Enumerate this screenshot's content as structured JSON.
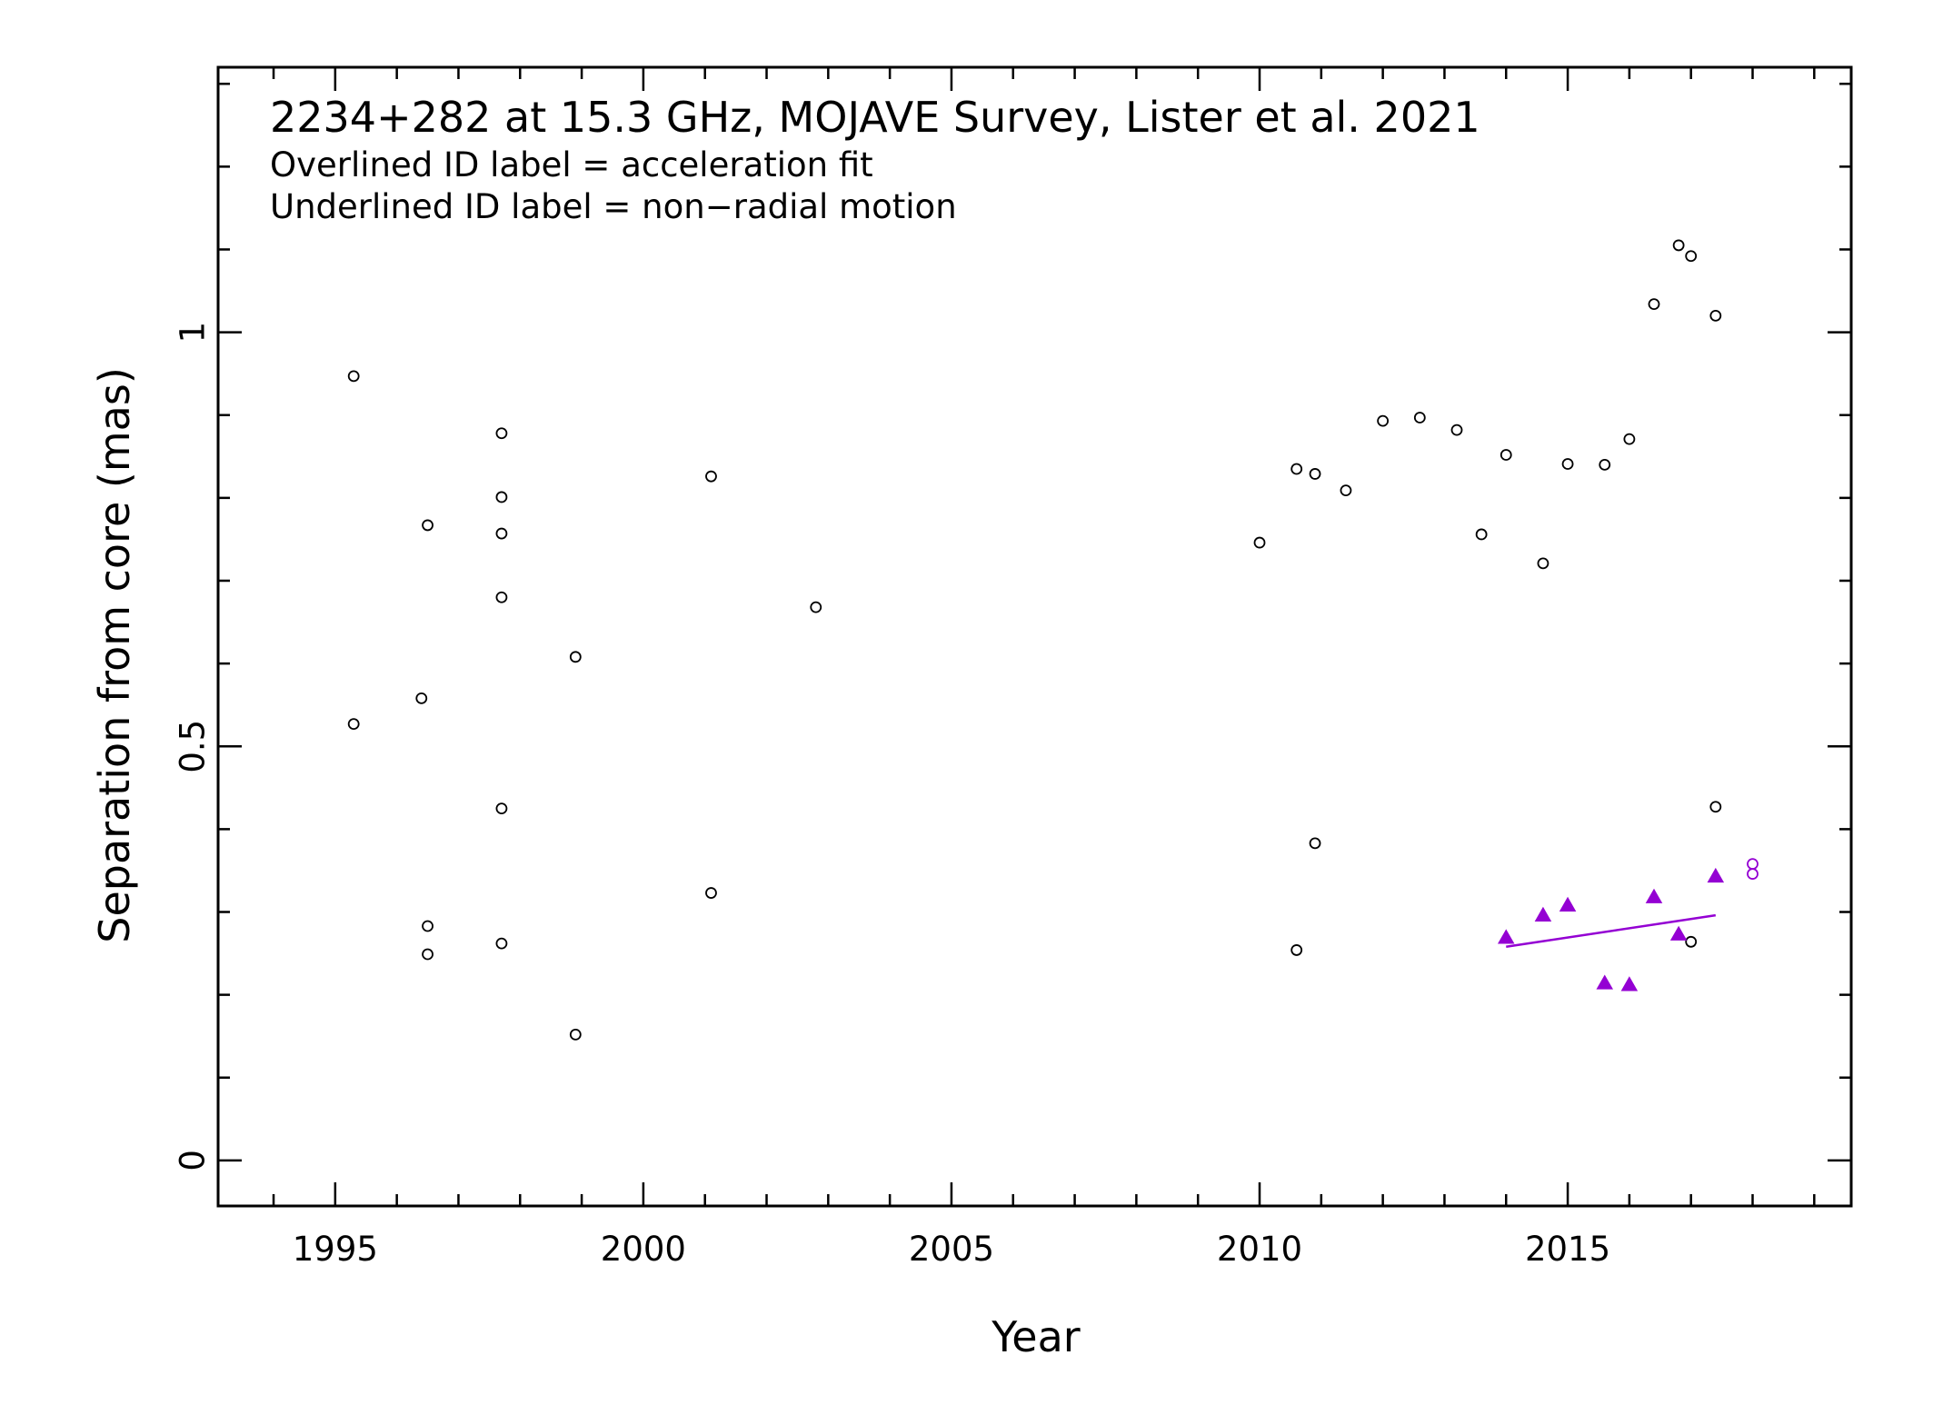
{
  "chart_data": {
    "type": "scatter",
    "title": "2234+282 at 15.3 GHz, MOJAVE Survey, Lister et al. 2021",
    "notes": [
      "Overlined ID label = acceleration fit",
      "Underlined ID label = non−radial motion"
    ],
    "xlabel": "Year",
    "ylabel": "Separation from core (mas)",
    "xlim": [
      1993.1,
      2019.6
    ],
    "ylim": [
      -0.055,
      1.32
    ],
    "x_ticks": [
      1995,
      2000,
      2005,
      2010,
      2015
    ],
    "x_tick_labels": [
      "1995",
      "2000",
      "2005",
      "2010",
      "2015"
    ],
    "y_ticks": [
      0,
      0.5,
      1
    ],
    "y_tick_labels": [
      "0",
      "0.5",
      "1"
    ],
    "grid": false,
    "colors": {
      "other": "#000000",
      "component": "#9400d3"
    },
    "series": [
      {
        "marker": "open-circle",
        "color": "#000000",
        "points": [
          [
            1995.3,
            0.947
          ],
          [
            1995.3,
            0.527
          ],
          [
            1996.4,
            0.558
          ],
          [
            1996.5,
            0.767
          ],
          [
            1996.5,
            0.283
          ],
          [
            1996.5,
            0.249
          ],
          [
            1997.7,
            0.878
          ],
          [
            1997.7,
            0.801
          ],
          [
            1997.7,
            0.757
          ],
          [
            1997.7,
            0.68
          ],
          [
            1997.7,
            0.425
          ],
          [
            1997.7,
            0.262
          ],
          [
            1998.9,
            0.608
          ],
          [
            1998.9,
            0.152
          ],
          [
            2001.1,
            0.826
          ],
          [
            2001.1,
            0.323
          ],
          [
            2002.8,
            0.668
          ],
          [
            2010.0,
            0.746
          ],
          [
            2010.6,
            0.835
          ],
          [
            2010.6,
            0.254
          ],
          [
            2010.9,
            0.829
          ],
          [
            2010.9,
            0.383
          ],
          [
            2011.4,
            0.809
          ],
          [
            2012.0,
            0.893
          ],
          [
            2012.6,
            0.897
          ],
          [
            2013.2,
            0.882
          ],
          [
            2013.6,
            0.756
          ],
          [
            2014.0,
            0.852
          ],
          [
            2014.6,
            0.721
          ],
          [
            2015.0,
            0.841
          ],
          [
            2015.6,
            0.84
          ],
          [
            2016.0,
            0.871
          ],
          [
            2016.4,
            1.034
          ],
          [
            2016.8,
            1.105
          ],
          [
            2017.0,
            1.092
          ],
          [
            2017.0,
            0.264
          ],
          [
            2017.4,
            1.02
          ],
          [
            2017.4,
            0.427
          ]
        ]
      },
      {
        "marker": "filled-triangle",
        "color": "#9400d3",
        "points": [
          [
            2014.0,
            0.269
          ],
          [
            2014.6,
            0.296
          ],
          [
            2015.0,
            0.308
          ],
          [
            2015.6,
            0.214
          ],
          [
            2016.0,
            0.212
          ],
          [
            2016.4,
            0.318
          ],
          [
            2016.8,
            0.273
          ],
          [
            2017.4,
            0.343
          ]
        ]
      },
      {
        "marker": "open-circle",
        "color": "#9400d3",
        "points": [
          [
            2018.0,
            0.358
          ],
          [
            2018.0,
            0.346
          ]
        ]
      }
    ],
    "fit_line": {
      "color": "#9400d3",
      "points": [
        [
          2014.0,
          0.258
        ],
        [
          2017.4,
          0.296
        ]
      ]
    }
  }
}
